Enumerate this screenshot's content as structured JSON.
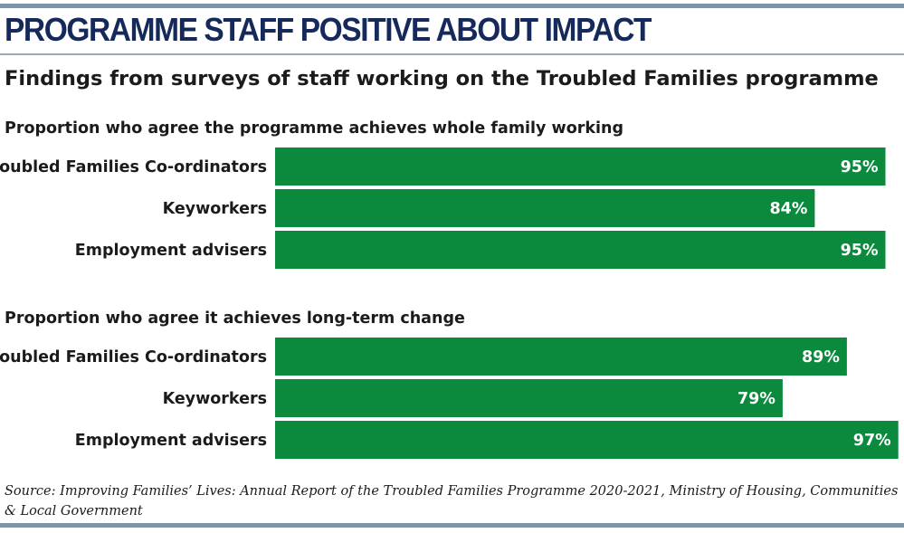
{
  "header": {
    "title": "PROGRAMME STAFF POSITIVE ABOUT IMPACT",
    "subtitle": "Findings from surveys of staff working on the Troubled Families programme"
  },
  "colors": {
    "bar": "#0b8a3e",
    "accent": "#15295a",
    "rule": "#7d93a8"
  },
  "chart_data": [
    {
      "type": "bar",
      "orientation": "horizontal",
      "title": "Proportion who agree the programme achieves whole family working",
      "categories": [
        "Troubled Families Co-ordinators",
        "Keyworkers",
        "Employment advisers"
      ],
      "values": [
        95,
        84,
        95
      ],
      "value_labels": [
        "95%",
        "84%",
        "95%"
      ],
      "unit": "%",
      "xlim": [
        0,
        100
      ],
      "grid": false,
      "legend": "none"
    },
    {
      "type": "bar",
      "orientation": "horizontal",
      "title": "Proportion who agree it achieves long-term change",
      "categories": [
        "Troubled Families Co-ordinators",
        "Keyworkers",
        "Employment advisers"
      ],
      "values": [
        89,
        79,
        97
      ],
      "value_labels": [
        "89%",
        "79%",
        "97%"
      ],
      "unit": "%",
      "xlim": [
        0,
        100
      ],
      "grid": false,
      "legend": "none"
    }
  ],
  "footer": {
    "source": "Source: Improving Families’ Lives: Annual Report of the Troubled Families Programme 2020-2021, Ministry of Housing, Communities & Local Government"
  }
}
